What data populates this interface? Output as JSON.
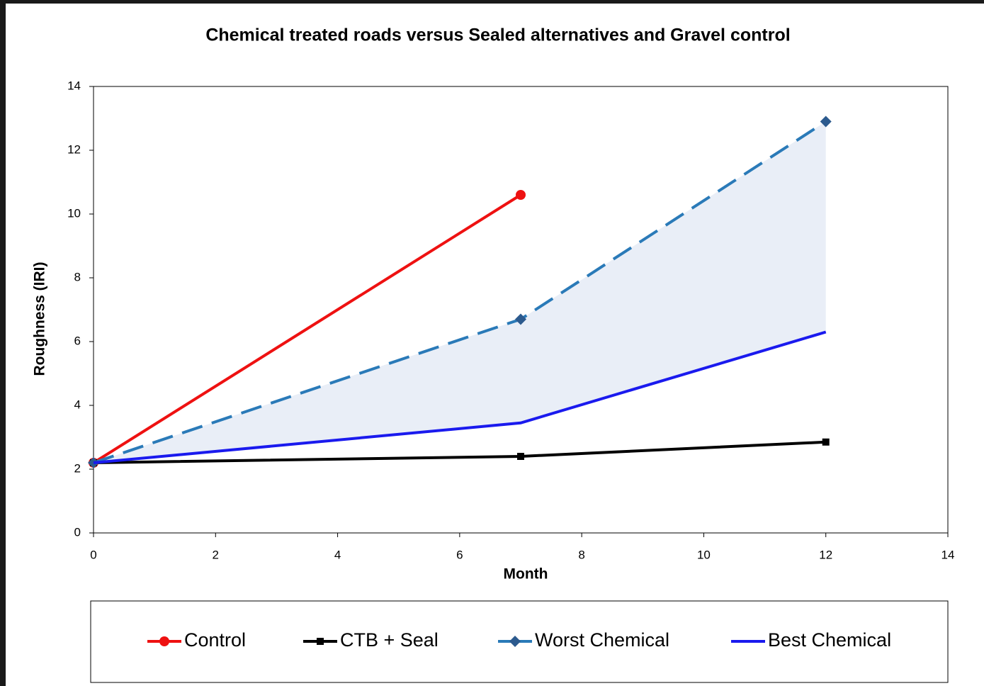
{
  "chart_data": {
    "type": "line",
    "title": "Chemical treated roads versus Sealed alternatives and Gravel control",
    "x_label": "Month",
    "y_label": "Roughness (IRI)",
    "xlim": [
      0,
      14
    ],
    "xticks": [
      0,
      2,
      4,
      6,
      8,
      10,
      12,
      14
    ],
    "ylim": [
      0,
      14
    ],
    "yticks": [
      0,
      2,
      4,
      6,
      8,
      10,
      12,
      14
    ],
    "grid": false,
    "legend": "bottom",
    "fill_color": "#e9eef7",
    "series": [
      {
        "name": "Control",
        "color": "#ee1111",
        "marker": "circle",
        "x": [
          0,
          7
        ],
        "values": [
          2.2,
          10.6
        ]
      },
      {
        "name": "CTB + Seal",
        "color": "#000000",
        "marker": "square",
        "x": [
          0,
          7,
          12
        ],
        "values": [
          2.2,
          2.4,
          2.85
        ]
      },
      {
        "name": "Worst Chemical",
        "color": "#2a7ab8",
        "marker": "diamond",
        "dash": true,
        "x": [
          0,
          7,
          12
        ],
        "values": [
          2.2,
          6.7,
          12.9
        ]
      },
      {
        "name": "Best Chemical",
        "color": "#1a1aee",
        "x": [
          0,
          7,
          12
        ],
        "values": [
          2.2,
          3.45,
          6.3
        ]
      }
    ]
  }
}
